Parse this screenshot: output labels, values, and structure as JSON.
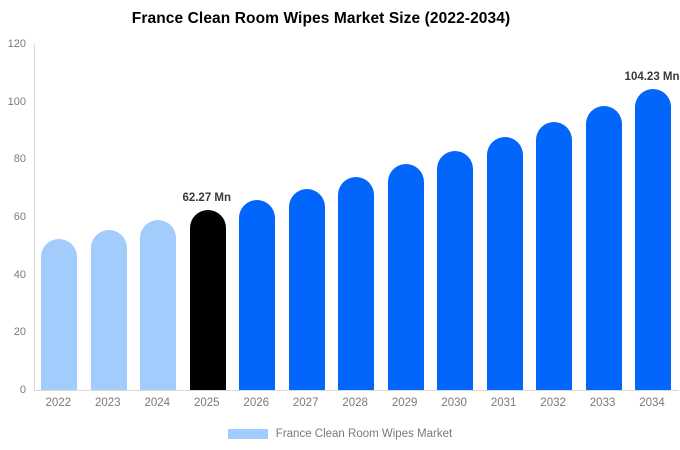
{
  "colors": {
    "historical": "#a1ccfc",
    "base_year": "#000000",
    "forecast": "#0366fc",
    "axis_line": "#d9d9d9",
    "axis_text": "#7a7a7a",
    "annotation_text": "#3a3a3a"
  },
  "legend": {
    "label": "France Clean Room Wipes Market",
    "swatch_color": "#a1ccfc"
  },
  "chart_data": {
    "type": "bar",
    "title": "France Clean Room Wipes Market Size (2022-2034)",
    "unit": "Mn",
    "categories": [
      "2022",
      "2023",
      "2024",
      "2025",
      "2026",
      "2027",
      "2028",
      "2029",
      "2030",
      "2031",
      "2032",
      "2033",
      "2034"
    ],
    "values": [
      52.4,
      55.5,
      58.8,
      62.27,
      65.94,
      69.82,
      73.93,
      78.29,
      82.9,
      87.78,
      92.95,
      98.42,
      104.23
    ],
    "bar_roles": [
      "historical",
      "historical",
      "historical",
      "base_year",
      "forecast",
      "forecast",
      "forecast",
      "forecast",
      "forecast",
      "forecast",
      "forecast",
      "forecast",
      "forecast"
    ],
    "annotations": [
      {
        "category": "2025",
        "text": "62.27 Mn"
      },
      {
        "category": "2034",
        "text": "104.23 Mn"
      }
    ],
    "xlabel": "",
    "ylabel": "",
    "ylim": [
      0,
      120
    ],
    "yticks": [
      0,
      20,
      40,
      60,
      80,
      100,
      120
    ],
    "grid": false,
    "legend_position": "bottom"
  }
}
